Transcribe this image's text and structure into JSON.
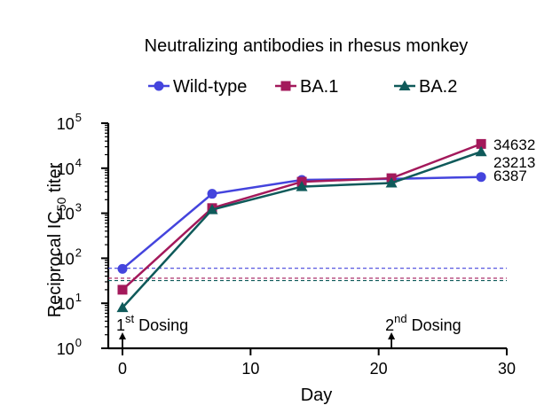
{
  "chart_data": {
    "type": "line",
    "title": "Neutralizing antibodies in rhesus monkey",
    "xlabel": "Day",
    "ylabel": {
      "prefix": "Reciprocal IC",
      "sub": "50",
      "suffix": " titer"
    },
    "xlim": [
      0,
      30
    ],
    "xticks": [
      "0",
      "10",
      "20",
      "30"
    ],
    "ylim": [
      1,
      100000
    ],
    "yscale": "log",
    "yticks": [
      {
        "value": 1,
        "base": "10",
        "exp": "0"
      },
      {
        "value": 10,
        "base": "10",
        "exp": "1"
      },
      {
        "value": 100,
        "base": "10",
        "exp": "2"
      },
      {
        "value": 1000,
        "base": "10",
        "exp": "3"
      },
      {
        "value": 10000,
        "base": "10",
        "exp": "4"
      },
      {
        "value": 100000,
        "base": "10",
        "exp": "5"
      }
    ],
    "grid": false,
    "legend_position": "top",
    "series": [
      {
        "name": "Wild-type",
        "color": "#4444dd",
        "marker": "circle",
        "x": [
          0,
          7,
          14,
          21,
          28
        ],
        "y": [
          58,
          2700,
          5500,
          5800,
          6387
        ],
        "end_label": "6387",
        "lod": 60
      },
      {
        "name": "BA.1",
        "color": "#a3195b",
        "marker": "square",
        "x": [
          0,
          7,
          14,
          21,
          28
        ],
        "y": [
          20,
          1300,
          5000,
          6000,
          34632
        ],
        "end_label": "34632",
        "lod": 36
      },
      {
        "name": "BA.2",
        "color": "#0f5a5a",
        "marker": "triangle",
        "x": [
          0,
          7,
          14,
          21,
          28
        ],
        "y": [
          8,
          1200,
          3900,
          4700,
          23213
        ],
        "end_label": "23213",
        "lod": 32
      }
    ],
    "annotations": [
      {
        "x": 0,
        "pre": "1",
        "sup": "st",
        "post": " Dosing"
      },
      {
        "x": 21,
        "pre": "2",
        "sup": "nd",
        "post": " Dosing"
      }
    ]
  }
}
